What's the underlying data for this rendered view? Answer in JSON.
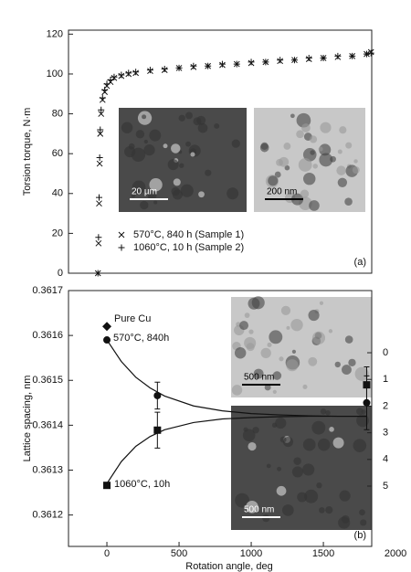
{
  "chart_data": [
    {
      "type": "scatter",
      "ylabel": "Torsion torque, N·m",
      "panel_label": "(a)",
      "xlim": [
        -266,
        1835
      ],
      "ylim": [
        0,
        122
      ],
      "yticks": [
        0,
        20,
        40,
        60,
        80,
        100,
        120
      ],
      "x": [
        -62,
        -58,
        -54,
        -50,
        -46,
        -40,
        -30,
        -15,
        0,
        25,
        50,
        100,
        150,
        200,
        300,
        400,
        500,
        600,
        700,
        800,
        900,
        1000,
        1100,
        1200,
        1300,
        1400,
        1500,
        1600,
        1700,
        1800,
        1830
      ],
      "series": [
        {
          "name": "570°C, 840 h (Sample 1)",
          "marker": "x",
          "color": "#111",
          "values": [
            0,
            15,
            35,
            55,
            70,
            80,
            87,
            91,
            94,
            96,
            98,
            99,
            100,
            100.5,
            101.5,
            102,
            103,
            103.5,
            104,
            104.5,
            105,
            105.5,
            106,
            106.5,
            107,
            107.5,
            108,
            108.5,
            109,
            110,
            111
          ]
        },
        {
          "name": "1060°C, 10 h (Sample 2)",
          "marker": "+",
          "color": "#111",
          "values": [
            0,
            18,
            38,
            58,
            72,
            82,
            88,
            92,
            95,
            97,
            98.5,
            99.5,
            100.5,
            101,
            102,
            102.5,
            103,
            104,
            104,
            105,
            105,
            106,
            106,
            107,
            107,
            108,
            108,
            109,
            109,
            110,
            110.5
          ]
        }
      ],
      "insets": [
        {
          "scale_bar": "20 µm"
        },
        {
          "scale_bar": "200 nm"
        }
      ]
    },
    {
      "type": "scatter",
      "xlabel": "Rotation angle, deg",
      "ylabel": "Lattice spacing, nm",
      "panel_label": "(b)",
      "xlim": [
        -266,
        1835
      ],
      "ylim": [
        0.36113,
        0.3617
      ],
      "xticks": [
        0,
        500,
        1000,
        1500,
        2000
      ],
      "yticks": [
        0.3612,
        0.3613,
        0.3614,
        0.3615,
        0.3616,
        0.3617
      ],
      "y2lim": [
        7.26,
        -2.33
      ],
      "y2ticks": [
        0,
        1,
        2,
        3,
        4,
        5
      ],
      "series": [
        {
          "name": "Pure Cu",
          "marker": "diamond",
          "color": "#111",
          "x": [
            0
          ],
          "values": [
            0.36162
          ],
          "errors": [
            null
          ]
        },
        {
          "name": "570°C, 840h",
          "marker": "circle",
          "color": "#111",
          "x": [
            0,
            350,
            1800
          ],
          "values": [
            0.36159,
            0.361466,
            0.36145
          ],
          "errors": [
            null,
            3e-05,
            6e-05
          ]
        },
        {
          "name": "1060°C, 10h",
          "marker": "square",
          "color": "#111",
          "x": [
            0,
            350,
            1800
          ],
          "values": [
            0.361266,
            0.361389,
            0.36149
          ],
          "errors": [
            null,
            4e-05,
            4e-05
          ]
        }
      ],
      "fit_lines": [
        {
          "x": [
            0,
            100,
            200,
            300,
            400,
            600,
            800,
            1000,
            1200,
            1400,
            1600,
            1800
          ],
          "values": [
            0.36159,
            0.361542,
            0.361507,
            0.361483,
            0.361465,
            0.361443,
            0.361432,
            0.361426,
            0.361423,
            0.361421,
            0.36142,
            0.36142
          ]
        },
        {
          "x": [
            0,
            100,
            200,
            300,
            400,
            600,
            800,
            1000,
            1200,
            1400,
            1600,
            1800
          ],
          "values": [
            0.36127,
            0.361319,
            0.361353,
            0.361375,
            0.36139,
            0.361406,
            0.361414,
            0.361417,
            0.361419,
            0.36142,
            0.36142,
            0.36142
          ]
        }
      ],
      "insets": [
        {
          "scale_bar": "500 nm"
        },
        {
          "scale_bar": "500 nm"
        }
      ]
    }
  ]
}
